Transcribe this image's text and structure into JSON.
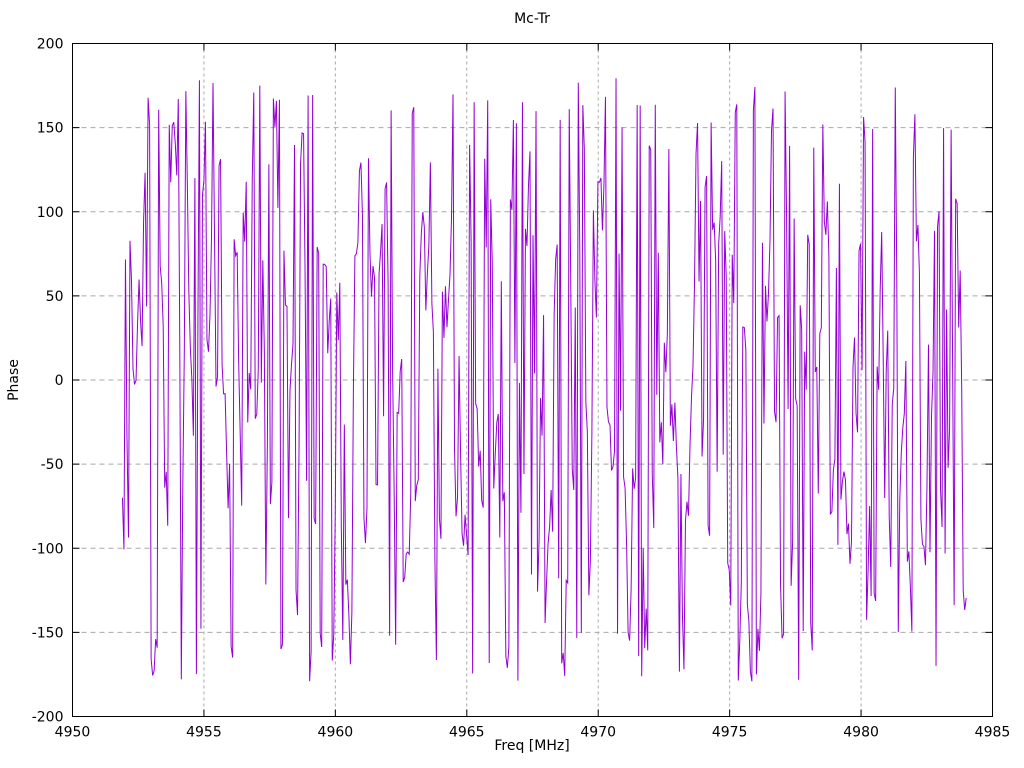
{
  "title": "Mc-Tr",
  "style": {
    "background": "#ffffff",
    "text_color": "#000000",
    "border_color": "#000000",
    "grid_color": "#a8a8a8",
    "line_color": "#9400D3"
  },
  "chart_data": {
    "type": "line",
    "title": "Mc-Tr",
    "xlabel": "Freq [MHz]",
    "ylabel": "Phase",
    "xlim": [
      4950,
      4985
    ],
    "ylim": [
      -200,
      200
    ],
    "xticks": [
      4950,
      4955,
      4960,
      4965,
      4970,
      4975,
      4980,
      4985
    ],
    "yticks": [
      -200,
      -150,
      -100,
      -50,
      0,
      50,
      100,
      150,
      200
    ],
    "grid": true,
    "legend": "none",
    "series": [
      {
        "name": "phase",
        "color": "#9400D3",
        "description": "Wrapped interferometric phase noise: rapidly varying phase wrapped to +/-180 deg, uniformly filling the band between -180 and 180 across the full sweep",
        "x_start": 4951.9,
        "x_end": 4984.0,
        "n_points": 560,
        "y_min": -180,
        "y_max": 180,
        "start_phase": -70,
        "flat_prob": 0.38,
        "flat_step": 35,
        "seed": 7
      }
    ]
  }
}
